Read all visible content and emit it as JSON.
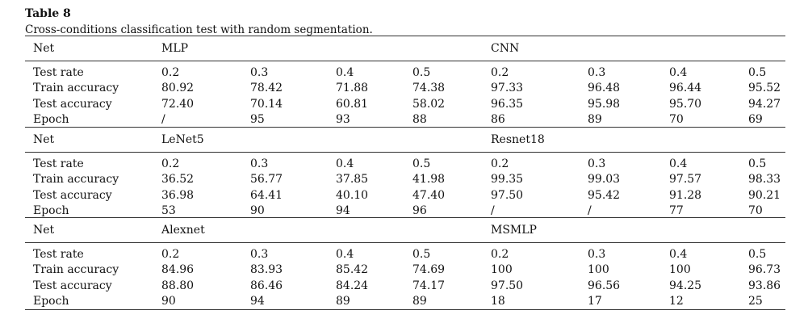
{
  "caption": {
    "title": "Table 8",
    "text": "Cross-conditions classification test with random segmentation."
  },
  "sections": [
    {
      "net_label": "Net",
      "left_model": "MLP",
      "right_model": "CNN",
      "rows": [
        {
          "label": "Test rate",
          "values": [
            "0.2",
            "0.3",
            "0.4",
            "0.5",
            "0.2",
            "0.3",
            "0.4",
            "0.5"
          ]
        },
        {
          "label": "Train accuracy",
          "values": [
            "80.92",
            "78.42",
            "71.88",
            "74.38",
            "97.33",
            "96.48",
            "96.44",
            "95.52"
          ]
        },
        {
          "label": "Test accuracy",
          "values": [
            "72.40",
            "70.14",
            "60.81",
            "58.02",
            "96.35",
            "95.98",
            "95.70",
            "94.27"
          ]
        },
        {
          "label": "Epoch",
          "values": [
            "/",
            "95",
            "93",
            "88",
            "86",
            "89",
            "70",
            "69"
          ]
        }
      ]
    },
    {
      "net_label": "Net",
      "left_model": "LeNet5",
      "right_model": "Resnet18",
      "rows": [
        {
          "label": "Test rate",
          "values": [
            "0.2",
            "0.3",
            "0.4",
            "0.5",
            "0.2",
            "0.3",
            "0.4",
            "0.5"
          ]
        },
        {
          "label": "Train accuracy",
          "values": [
            "36.52",
            "56.77",
            "37.85",
            "41.98",
            "99.35",
            "99.03",
            "97.57",
            "98.33"
          ]
        },
        {
          "label": "Test accuracy",
          "values": [
            "36.98",
            "64.41",
            "40.10",
            "47.40",
            "97.50",
            "95.42",
            "91.28",
            "90.21"
          ]
        },
        {
          "label": "Epoch",
          "values": [
            "53",
            "90",
            "94",
            "96",
            "/",
            "/",
            "77",
            "70"
          ]
        }
      ]
    },
    {
      "net_label": "Net",
      "left_model": "Alexnet",
      "right_model": "MSMLP",
      "rows": [
        {
          "label": "Test rate",
          "values": [
            "0.2",
            "0.3",
            "0.4",
            "0.5",
            "0.2",
            "0.3",
            "0.4",
            "0.5"
          ]
        },
        {
          "label": "Train accuracy",
          "values": [
            "84.96",
            "83.93",
            "85.42",
            "74.69",
            "100",
            "100",
            "100",
            "96.73"
          ]
        },
        {
          "label": "Test accuracy",
          "values": [
            "88.80",
            "86.46",
            "84.24",
            "74.17",
            "97.50",
            "96.56",
            "94.25",
            "93.86"
          ]
        },
        {
          "label": "Epoch",
          "values": [
            "90",
            "94",
            "89",
            "89",
            "18",
            "17",
            "12",
            "25"
          ]
        }
      ]
    }
  ]
}
